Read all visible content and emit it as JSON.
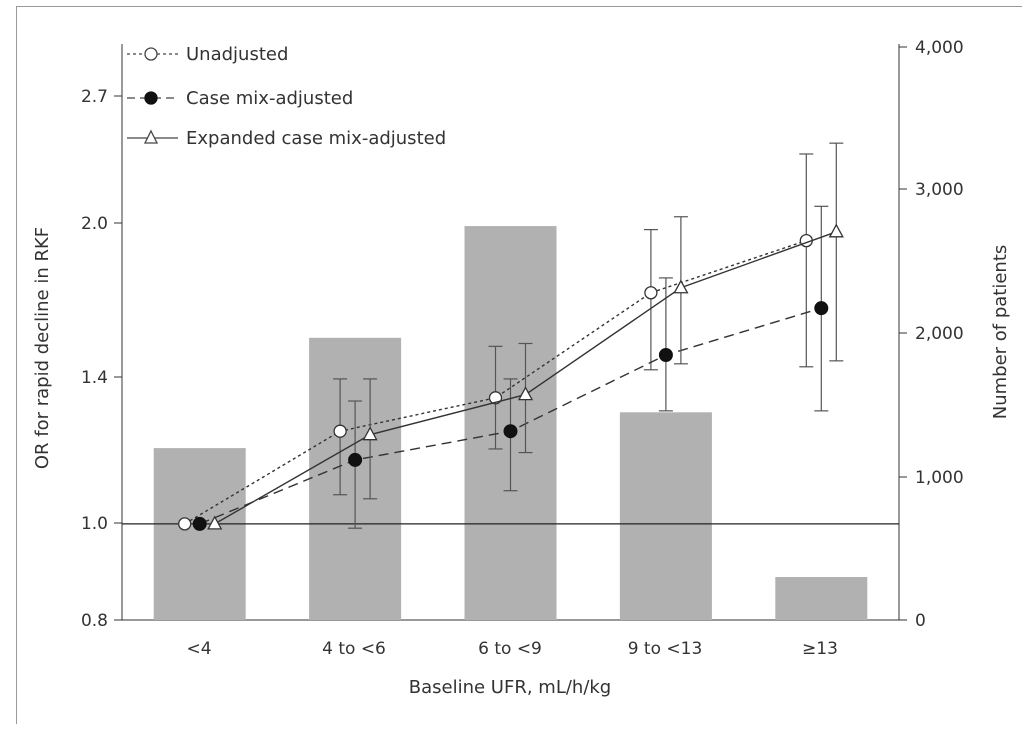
{
  "chart_data": {
    "type": "bar+line",
    "categories": [
      "<4",
      "4 to <6",
      "6 to <9",
      "9 to <13",
      "≥13"
    ],
    "xlabel": "Baseline UFR, mL/h/kg",
    "ylabel_left": "OR for rapid decline in RKF",
    "ylabel_right": "Number of patients",
    "left_ticks": [
      "0.8",
      "1.0",
      "1.4",
      "2.0",
      "2.7"
    ],
    "left_scale": "log",
    "right_ticks": [
      "0",
      "1,000",
      "2,000",
      "3,000",
      "4,000"
    ],
    "right_range": [
      0,
      4000
    ],
    "reference_line": 1.0,
    "bars": {
      "color": "#b1b1b1",
      "values": [
        1200,
        1970,
        2750,
        1450,
        300
      ]
    },
    "series": [
      {
        "name": "Unadjusted",
        "style": "dotted",
        "marker": "open-circle",
        "values": [
          1.0,
          1.24,
          1.34,
          1.71,
          1.93
        ],
        "ci_low": [
          1.0,
          1.07,
          1.19,
          1.43,
          1.44
        ],
        "ci_high": [
          1.0,
          1.4,
          1.51,
          1.98,
          2.36
        ]
      },
      {
        "name": "Case mix-adjusted",
        "style": "dashed",
        "marker": "filled-circle",
        "values": [
          1.0,
          1.16,
          1.24,
          1.48,
          1.65
        ],
        "ci_low": [
          1.0,
          0.99,
          1.08,
          1.3,
          1.3
        ],
        "ci_high": [
          1.0,
          1.33,
          1.4,
          1.77,
          2.09
        ]
      },
      {
        "name": "Expanded case mix-adjusted",
        "style": "solid",
        "marker": "open-triangle",
        "values": [
          1.0,
          1.23,
          1.35,
          1.73,
          1.97
        ],
        "ci_low": [
          1.0,
          1.06,
          1.18,
          1.45,
          1.46
        ],
        "ci_high": [
          1.0,
          1.4,
          1.52,
          2.04,
          2.42
        ]
      }
    ],
    "legend_position": "top-left"
  }
}
